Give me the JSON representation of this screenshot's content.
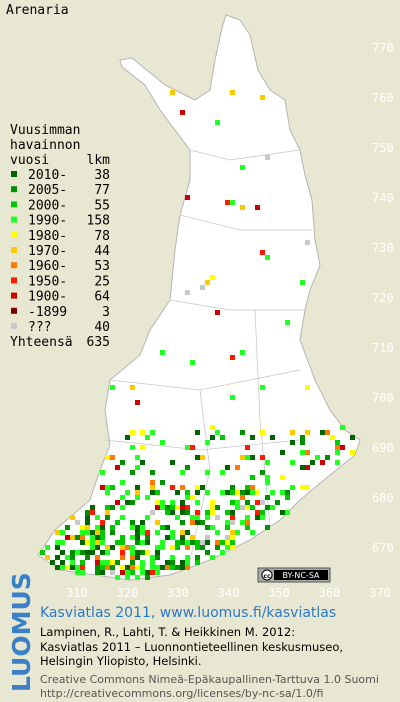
{
  "title": "Arenaria",
  "legend": {
    "heading": [
      "Vuusimman",
      "havainnon"
    ],
    "year_heading": "vuosi",
    "count_heading": "lkm",
    "items": [
      {
        "label": "2010-",
        "count": 38,
        "color": "#006400"
      },
      {
        "label": "2005-",
        "count": 77,
        "color": "#009000"
      },
      {
        "label": "2000-",
        "count": 55,
        "color": "#00c800"
      },
      {
        "label": "1990-",
        "count": 158,
        "color": "#22ff22"
      },
      {
        "label": "1980-",
        "count": 78,
        "color": "#ffff00"
      },
      {
        "label": "1970-",
        "count": 44,
        "color": "#ffc800"
      },
      {
        "label": "1960-",
        "count": 53,
        "color": "#ff7800"
      },
      {
        "label": "1950-",
        "count": 25,
        "color": "#ff1a00"
      },
      {
        "label": "1900-",
        "count": 64,
        "color": "#cc0000"
      },
      {
        "label": "-1899",
        "count": 3,
        "color": "#800000"
      },
      {
        "label": "???",
        "count": 40,
        "color": "#c8c8c8"
      }
    ],
    "total_label": "Yhteensä",
    "total": 635
  },
  "map": {
    "northing_labels": [
      770,
      760,
      750,
      740,
      730,
      720,
      710,
      700,
      690,
      680,
      670
    ],
    "easting_labels": [
      310,
      320,
      330,
      340,
      350,
      360,
      370
    ],
    "license_badge": "BY-NC-SA"
  },
  "footer": {
    "logo": "LUOMUS",
    "headline": "Kasviatlas 2011, www.luomus.fi/kasviatlas",
    "citation": [
      "Lampinen, R., Lahti, T. & Heikkinen M. 2012:",
      "Kasviatlas 2011 – Luonnontieteellinen keskusmuseo,",
      "Helsingin Yliopisto, Helsinki."
    ],
    "license": [
      "Creative Commons Nimeä-Epäkaupallinen-Tarttuva 1.0 Suomi",
      "http://creativecommons.org/licenses/by-nc-sa/1.0/fi"
    ]
  }
}
